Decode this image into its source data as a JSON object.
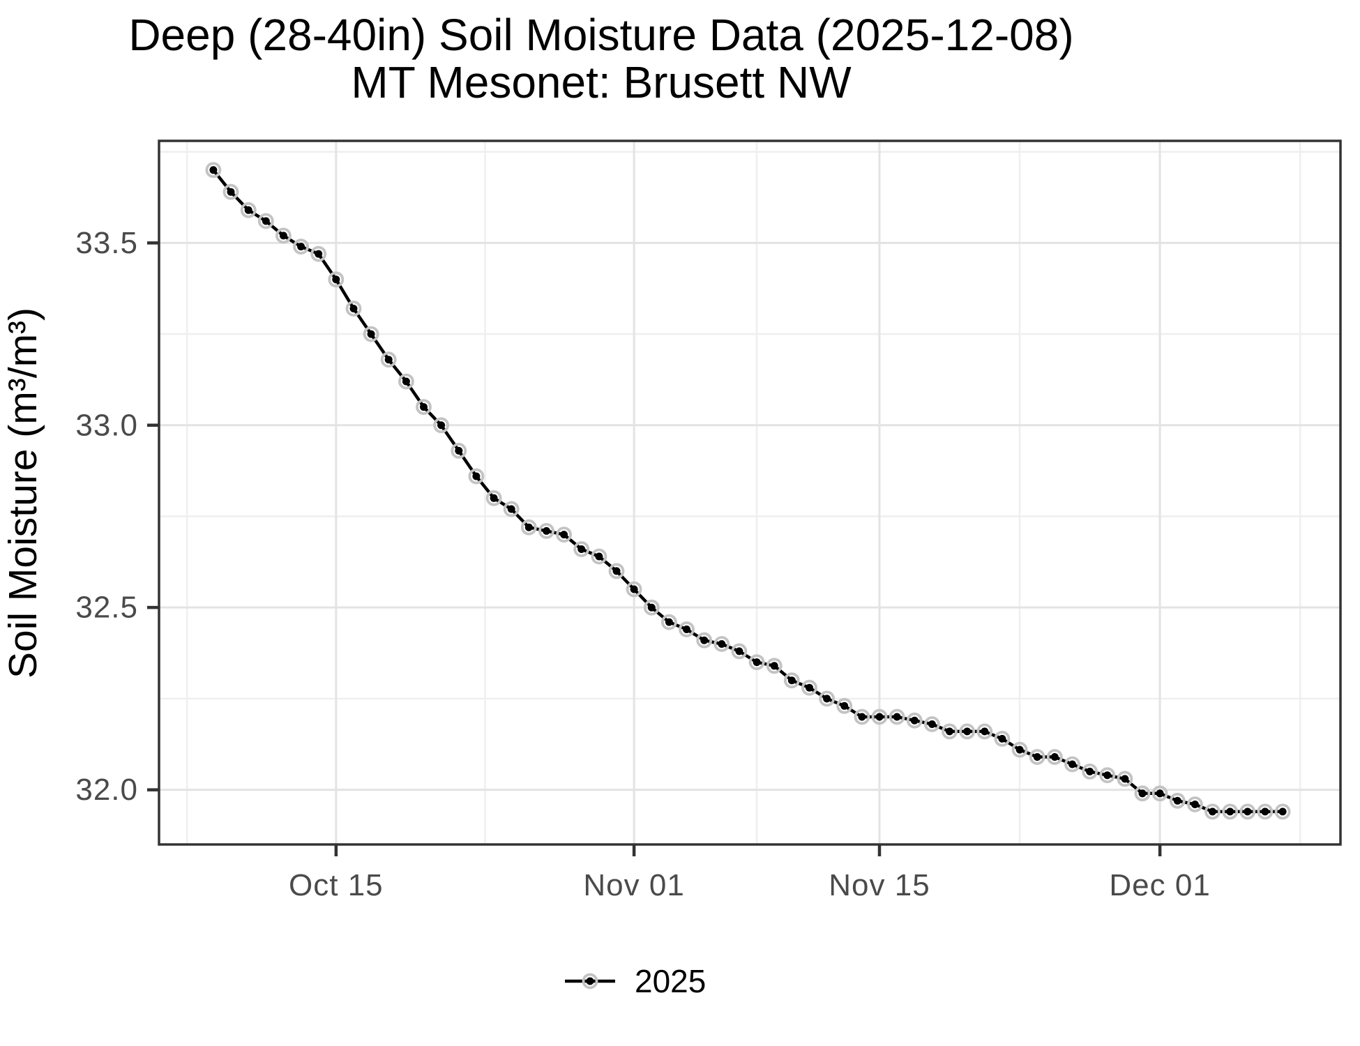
{
  "chart_data": {
    "type": "line",
    "title": "Deep (28-40in) Soil Moisture Data (2025-12-08)",
    "subtitle": "MT Mesonet: Brusett NW",
    "xlabel": "",
    "ylabel": "Soil Moisture (m³/m³)",
    "legend_position": "bottom",
    "grid": true,
    "series": [
      {
        "name": "2025",
        "dates": [
          "2025-10-08",
          "2025-10-09",
          "2025-10-10",
          "2025-10-11",
          "2025-10-12",
          "2025-10-13",
          "2025-10-14",
          "2025-10-15",
          "2025-10-16",
          "2025-10-17",
          "2025-10-18",
          "2025-10-19",
          "2025-10-20",
          "2025-10-21",
          "2025-10-22",
          "2025-10-23",
          "2025-10-24",
          "2025-10-25",
          "2025-10-26",
          "2025-10-27",
          "2025-10-28",
          "2025-10-29",
          "2025-10-30",
          "2025-10-31",
          "2025-11-01",
          "2025-11-02",
          "2025-11-03",
          "2025-11-04",
          "2025-11-05",
          "2025-11-06",
          "2025-11-07",
          "2025-11-08",
          "2025-11-09",
          "2025-11-10",
          "2025-11-11",
          "2025-11-12",
          "2025-11-13",
          "2025-11-14",
          "2025-11-15",
          "2025-11-16",
          "2025-11-17",
          "2025-11-18",
          "2025-11-19",
          "2025-11-20",
          "2025-11-21",
          "2025-11-22",
          "2025-11-23",
          "2025-11-24",
          "2025-11-25",
          "2025-11-26",
          "2025-11-27",
          "2025-11-28",
          "2025-11-29",
          "2025-11-30",
          "2025-12-01",
          "2025-12-02",
          "2025-12-03",
          "2025-12-04",
          "2025-12-05",
          "2025-12-06",
          "2025-12-07",
          "2025-12-08"
        ],
        "values": [
          33.7,
          33.64,
          33.59,
          33.56,
          33.52,
          33.49,
          33.47,
          33.4,
          33.32,
          33.25,
          33.18,
          33.12,
          33.05,
          33.0,
          32.93,
          32.86,
          32.8,
          32.77,
          32.72,
          32.71,
          32.7,
          32.66,
          32.64,
          32.6,
          32.55,
          32.5,
          32.46,
          32.44,
          32.41,
          32.4,
          32.38,
          32.35,
          32.34,
          32.3,
          32.28,
          32.25,
          32.23,
          32.2,
          32.2,
          32.2,
          32.19,
          32.18,
          32.16,
          32.16,
          32.16,
          32.14,
          32.11,
          32.09,
          32.09,
          32.07,
          32.05,
          32.04,
          32.03,
          31.99,
          31.99,
          31.97,
          31.96,
          31.94,
          31.94,
          31.94,
          31.94,
          31.94
        ]
      }
    ],
    "x_ticks": [
      {
        "label": "Oct 15",
        "date": "2025-10-15"
      },
      {
        "label": "Nov 01",
        "date": "2025-11-01"
      },
      {
        "label": "Nov 15",
        "date": "2025-11-15"
      },
      {
        "label": "Dec 01",
        "date": "2025-12-01"
      }
    ],
    "y_ticks": [
      {
        "label": "33.5",
        "value": 33.5
      },
      {
        "label": "33.0",
        "value": 33.0
      },
      {
        "label": "32.5",
        "value": 32.5
      },
      {
        "label": "32.0",
        "value": 32.0
      }
    ],
    "y_minor": [
      33.75,
      33.25,
      32.75,
      32.25
    ],
    "x_minor_days": [
      -1.5,
      15.5,
      31,
      46,
      62
    ],
    "ylim": [
      31.85,
      33.78
    ],
    "x_range_days": [
      -3.1,
      64.3
    ],
    "colors": {
      "line": "#000000",
      "marker": "#000000",
      "marker_halo": "#c3c3c3",
      "grid_major": "#e3e3e3",
      "grid_minor": "#efefef",
      "panel_border": "#333333",
      "axis_tick": "#333333",
      "tick_label": "#4a4a4a",
      "background": "#ffffff"
    }
  }
}
